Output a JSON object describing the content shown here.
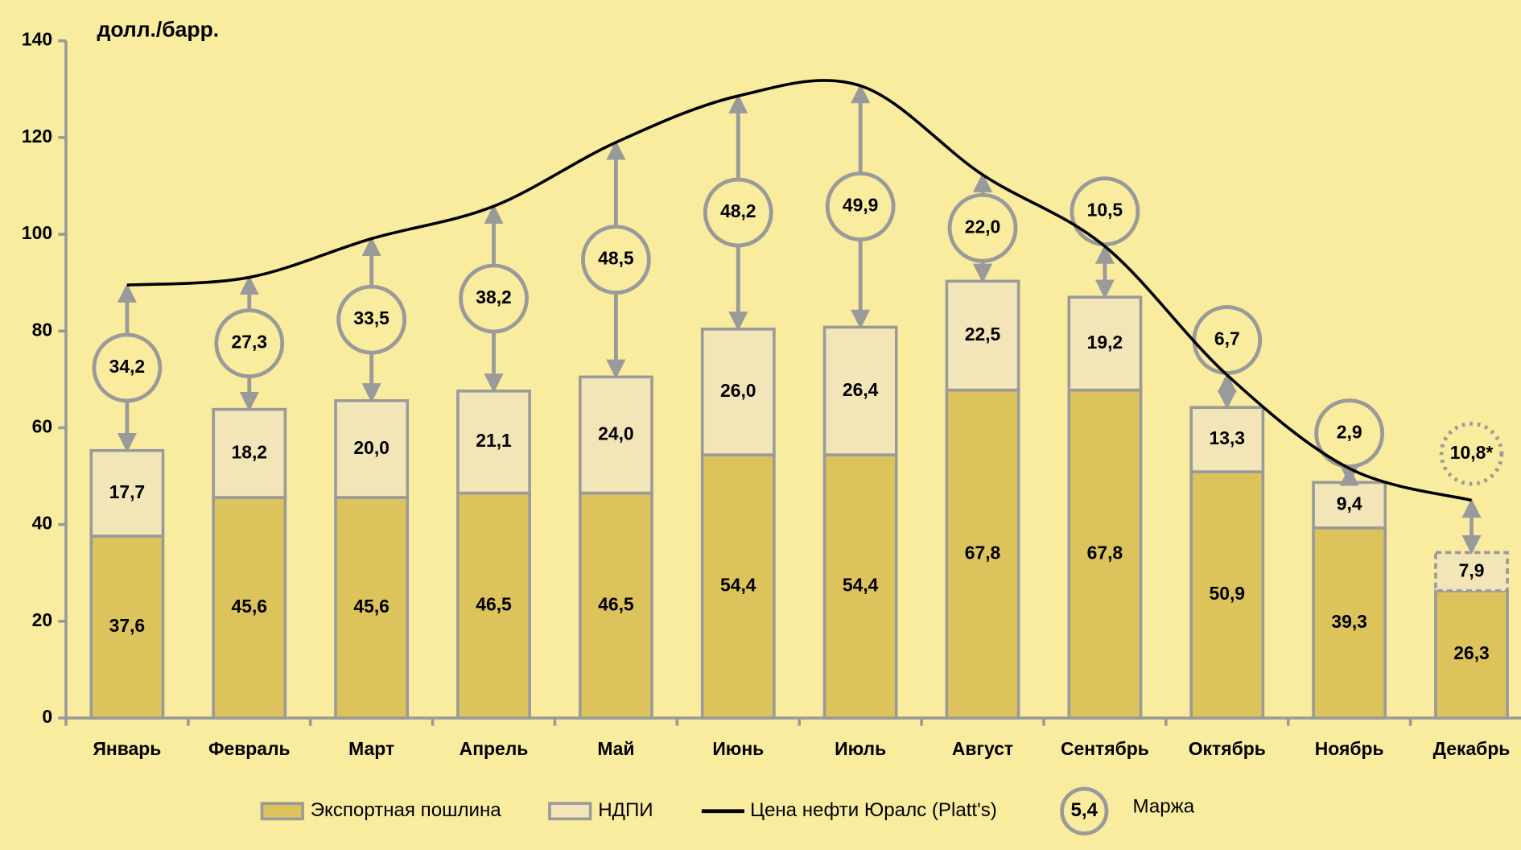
{
  "chart_data": {
    "type": "bar",
    "stacked": true,
    "title": "долл./барр.",
    "categories": [
      "Январь",
      "Февраль",
      "Март",
      "Апрель",
      "Май",
      "Июнь",
      "Июль",
      "Август",
      "Сентябрь",
      "Октябрь",
      "Ноябрь",
      "Декабрь"
    ],
    "ylim": [
      0,
      140
    ],
    "yticks": [
      0,
      20,
      40,
      60,
      80,
      100,
      120,
      140
    ],
    "forecast_last": true,
    "series": [
      {
        "name": "Экспортная пошлина",
        "color": "#dcc35c",
        "values": [
          37.6,
          45.6,
          45.6,
          46.5,
          46.5,
          54.4,
          54.4,
          67.8,
          67.8,
          50.9,
          39.3,
          26.3
        ],
        "value_labels": [
          "37,6",
          "45,6",
          "45,6",
          "46,5",
          "46,5",
          "54,4",
          "54,4",
          "67,8",
          "67,8",
          "50,9",
          "39,3",
          "26,3"
        ]
      },
      {
        "name": "НДПИ",
        "color": "#f2e6b8",
        "values": [
          17.7,
          18.2,
          20.0,
          21.1,
          24.0,
          26.0,
          26.4,
          22.5,
          19.2,
          13.3,
          9.4,
          7.9
        ],
        "value_labels": [
          "17,7",
          "18,2",
          "20,0",
          "21,1",
          "24,0",
          "26,0",
          "26,4",
          "22,5",
          "19,2",
          "13,3",
          "9,4",
          "7,9"
        ]
      },
      {
        "name": "Цена нефти Юралс (Platt's)",
        "type": "line",
        "color": "#000000",
        "values": [
          89.5,
          91.1,
          99.1,
          105.8,
          119.0,
          128.6,
          130.7,
          112.3,
          97.5,
          70.9,
          51.6,
          45.0
        ]
      },
      {
        "name": "Маржа",
        "type": "margin",
        "color": "#9a9a9a",
        "legend_sample": "5,4",
        "values": [
          34.2,
          27.3,
          33.5,
          38.2,
          48.5,
          48.2,
          49.9,
          22.0,
          10.5,
          6.7,
          2.9,
          10.8
        ],
        "value_labels": [
          "34,2",
          "27,3",
          "33,5",
          "38,2",
          "48,5",
          "48,2",
          "49,9",
          "22,0",
          "10,5",
          "6,7",
          "2,9",
          "10,8*"
        ]
      }
    ]
  }
}
